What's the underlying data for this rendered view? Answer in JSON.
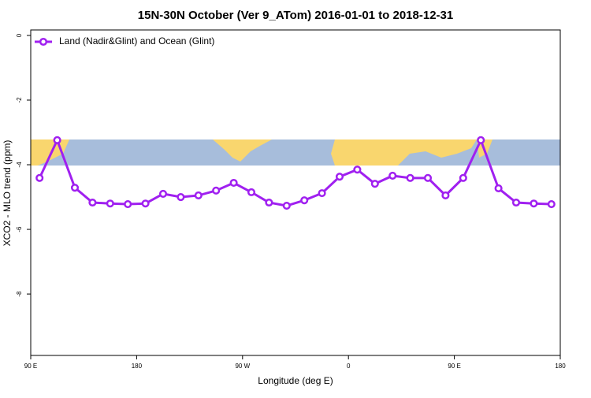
{
  "chart_data": {
    "type": "line",
    "title": "15N-30N October (Ver 9_ATom)   2016-01-01 to 2018-12-31",
    "x_label": "Longitude (deg E)",
    "y_label": "XCO2 - MLO trend (ppm)",
    "x": [
      97.5,
      112.5,
      127.5,
      142.5,
      157.5,
      172.5,
      187.5,
      202.5,
      217.5,
      232.5,
      247.5,
      262.5,
      277.5,
      292.5,
      307.5,
      322.5,
      337.5,
      352.5,
      367.5,
      382.5,
      397.5,
      412.5,
      427.5,
      442.5,
      457.5,
      472.5,
      487.5,
      502.5,
      517.5,
      532.5
    ],
    "series": [
      {
        "name": "Land (Nadir&Glint) and Ocean (Glint)",
        "color": "#a020f0",
        "values": [
          -4.41,
          -3.24,
          -4.71,
          -5.17,
          -5.2,
          -5.22,
          -5.2,
          -4.9,
          -5.0,
          -4.95,
          -4.8,
          -4.56,
          -4.85,
          -5.17,
          -5.27,
          -5.1,
          -4.88,
          -4.37,
          -4.15,
          -4.59,
          -4.34,
          -4.41,
          -4.41,
          -4.95,
          -4.41,
          -3.24,
          -4.73,
          -5.17,
          -5.2,
          -5.22
        ]
      }
    ],
    "xlim": [
      90,
      540
    ],
    "xticks": [
      {
        "value": 90,
        "label": "90 E"
      },
      180,
      {
        "value": 270,
        "label": "90 W"
      },
      {
        "value": 360,
        "label": "0"
      },
      {
        "value": 450,
        "label": "90 E"
      },
      {
        "value": 540,
        "label": "180"
      }
    ],
    "ylim": [
      -9.9,
      0.17
    ],
    "yticks": [
      0,
      -2,
      -4,
      -6,
      -8
    ],
    "legend": "top-left"
  }
}
